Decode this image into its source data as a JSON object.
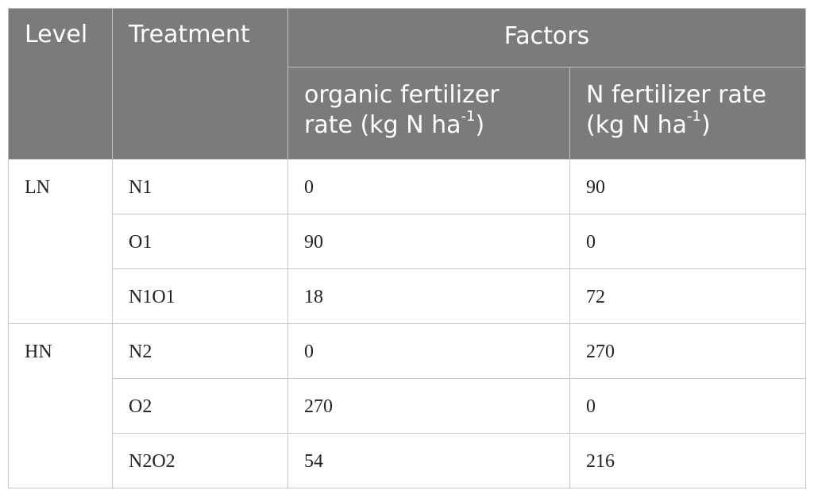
{
  "header": {
    "level": "Level",
    "treatment": "Treatment",
    "factors": "Factors",
    "organic_main": "organic fertilizer rate (kg N ha",
    "organic_sup": "-1",
    "organic_close": ")",
    "n_main": "N fertilizer rate (kg N ha",
    "n_sup": "-1",
    "n_close": ")"
  },
  "groups": [
    {
      "level": "LN",
      "rows": [
        {
          "treatment": "N1",
          "organic": "0",
          "n": "90"
        },
        {
          "treatment": "O1",
          "organic": "90",
          "n": "0"
        },
        {
          "treatment": "N1O1",
          "organic": "18",
          "n": "72"
        }
      ]
    },
    {
      "level": "HN",
      "rows": [
        {
          "treatment": "N2",
          "organic": "0",
          "n": "270"
        },
        {
          "treatment": "O2",
          "organic": "270",
          "n": "0"
        },
        {
          "treatment": "N2O2",
          "organic": "54",
          "n": "216"
        }
      ]
    }
  ]
}
